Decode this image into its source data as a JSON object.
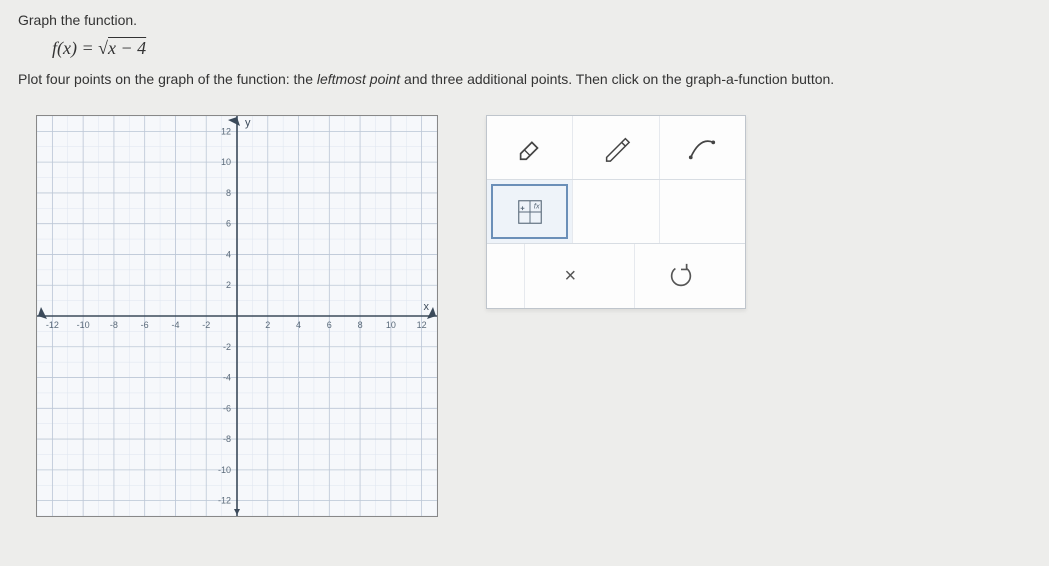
{
  "instruction1": "Graph the function.",
  "formula_prefix": "f(x) = √",
  "formula_radicand": "x − 4",
  "instruction2_a": "Plot four points on the graph of the function: the ",
  "instruction2_em": "leftmost point",
  "instruction2_b": " and three additional points. Then click on the graph-a-function button.",
  "graph": {
    "type": "coordinate-grid",
    "xlim": [
      -13,
      13
    ],
    "ylim": [
      -13,
      13
    ],
    "xtick_step": 2,
    "ytick_step": 2,
    "minor_step": 1,
    "x_label_min": -12,
    "x_label_max": 12,
    "y_label_min": -12,
    "y_label_max": 12,
    "background_color": "#f6f8fb",
    "major_grid_color": "#bcc7d6",
    "minor_grid_color": "#dde5ef",
    "axis_color": "#3b4a5a",
    "tick_label_color": "#5a6a7a",
    "tick_fontsize": 9,
    "axis_label_x": "x",
    "axis_label_y": "y"
  },
  "tools": {
    "eraser": "eraser-icon",
    "pencil": "pencil-icon",
    "curve": "curve-icon",
    "graphfn": "graph-function-icon",
    "clear_label": "×",
    "reset": "reset-icon"
  }
}
